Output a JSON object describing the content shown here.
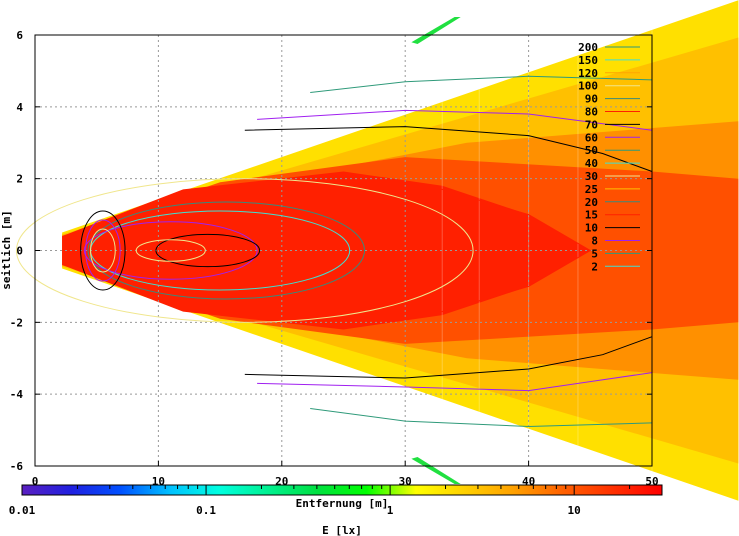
{
  "chart_data": {
    "type": "heatmap",
    "subtype": "contour-map",
    "xlabel": "Entfernung [m]",
    "ylabel": "seitlich [m]",
    "xlim": [
      0,
      50
    ],
    "ylim": [
      -6,
      6
    ],
    "xticks": [
      "0",
      "10",
      "20",
      "30",
      "40",
      "50"
    ],
    "yticks": [
      "6",
      "4",
      "2",
      "0",
      "-2",
      "-4",
      "-6"
    ],
    "grid": true,
    "colorbar": {
      "label": "E [lx]",
      "scale": "log",
      "range": [
        0.01,
        30
      ],
      "ticks": [
        "0.01",
        "0.1",
        "1",
        "10"
      ],
      "colors": [
        "#5a1fc0",
        "#2020e0",
        "#0050ff",
        "#00c0ff",
        "#00ffe0",
        "#00f090",
        "#00e040",
        "#00ff00",
        "#ffff00",
        "#ffd000",
        "#ffa000",
        "#ff6000",
        "#ff3000",
        "#ff0000"
      ]
    },
    "legend_position": "top-right",
    "contour_levels": [
      {
        "label": "200",
        "color": "#2f9a7a"
      },
      {
        "label": "150",
        "color": "#40e0d0"
      },
      {
        "label": "120",
        "color": "#ffa500"
      },
      {
        "label": "100",
        "color": "#f0e68c"
      },
      {
        "label": "90",
        "color": "#3a8a7a"
      },
      {
        "label": "80",
        "color": "#ff2000"
      },
      {
        "label": "70",
        "color": "#000000"
      },
      {
        "label": "60",
        "color": "#a020f0"
      },
      {
        "label": "50",
        "color": "#2f9a7a"
      },
      {
        "label": "40",
        "color": "#40e0d0"
      },
      {
        "label": "30",
        "color": "#f0e68c"
      },
      {
        "label": "25",
        "color": "#ffc000"
      },
      {
        "label": "20",
        "color": "#3a8a7a"
      },
      {
        "label": "15",
        "color": "#ff2000"
      },
      {
        "label": "10",
        "color": "#000000"
      },
      {
        "label": "8",
        "color": "#a020f0"
      },
      {
        "label": "5",
        "color": "#2f9a7a"
      },
      {
        "label": "2",
        "color": "#40e0d0"
      }
    ],
    "contours": [
      {
        "level": "5",
        "points": [
          [
            22.3,
            4.4
          ],
          [
            30,
            4.7
          ],
          [
            40,
            4.85
          ],
          [
            50,
            4.75
          ]
        ]
      },
      {
        "level": "5",
        "points": [
          [
            22.3,
            -4.4
          ],
          [
            30,
            -4.75
          ],
          [
            40,
            -4.9
          ],
          [
            50,
            -4.8
          ]
        ]
      },
      {
        "level": "8",
        "points": [
          [
            18,
            3.65
          ],
          [
            30,
            3.9
          ],
          [
            40,
            3.8
          ],
          [
            50,
            3.35
          ]
        ]
      },
      {
        "level": "8",
        "points": [
          [
            18,
            -3.7
          ],
          [
            30,
            -3.8
          ],
          [
            40,
            -3.9
          ],
          [
            50,
            -3.4
          ]
        ]
      },
      {
        "level": "10",
        "points": [
          [
            17,
            3.35
          ],
          [
            30,
            3.45
          ],
          [
            40,
            3.2
          ],
          [
            46,
            2.7
          ],
          [
            50,
            2.2
          ]
        ]
      },
      {
        "level": "10",
        "points": [
          [
            17,
            -3.45
          ],
          [
            30,
            -3.55
          ],
          [
            40,
            -3.3
          ],
          [
            46,
            -2.9
          ],
          [
            50,
            -2.4
          ]
        ]
      },
      {
        "level": "15",
        "points": [
          [
            23,
            1.9
          ],
          [
            33,
            1.7
          ],
          [
            40,
            1.0
          ],
          [
            45,
            0
          ],
          [
            40,
            -1.0
          ],
          [
            33,
            -1.7
          ],
          [
            23,
            -1.9
          ]
        ]
      }
    ],
    "ellipses": [
      {
        "level": "30",
        "cx": 17,
        "rx": 18.5,
        "ry": 2.0
      },
      {
        "level": "20",
        "cx": 15.5,
        "rx": 11.2,
        "ry": 1.35
      },
      {
        "level": "40",
        "cx": 15,
        "rx": 10.5,
        "ry": 1.1
      },
      {
        "level": "60",
        "cx": 11,
        "rx": 7,
        "ry": 0.8
      },
      {
        "level": "70",
        "cx": 14,
        "rx": 4.2,
        "ry": 0.45
      },
      {
        "level": "100",
        "cx": 11,
        "rx": 2.8,
        "ry": 0.3
      },
      {
        "level": "70",
        "cx": 5.5,
        "rx": 1.8,
        "ry": 1.1
      },
      {
        "level": "100",
        "cx": 5.5,
        "rx": 1.0,
        "ry": 0.6
      },
      {
        "level": "60",
        "cx": 5.5,
        "rx": 1.4,
        "ry": 0.85
      }
    ]
  }
}
